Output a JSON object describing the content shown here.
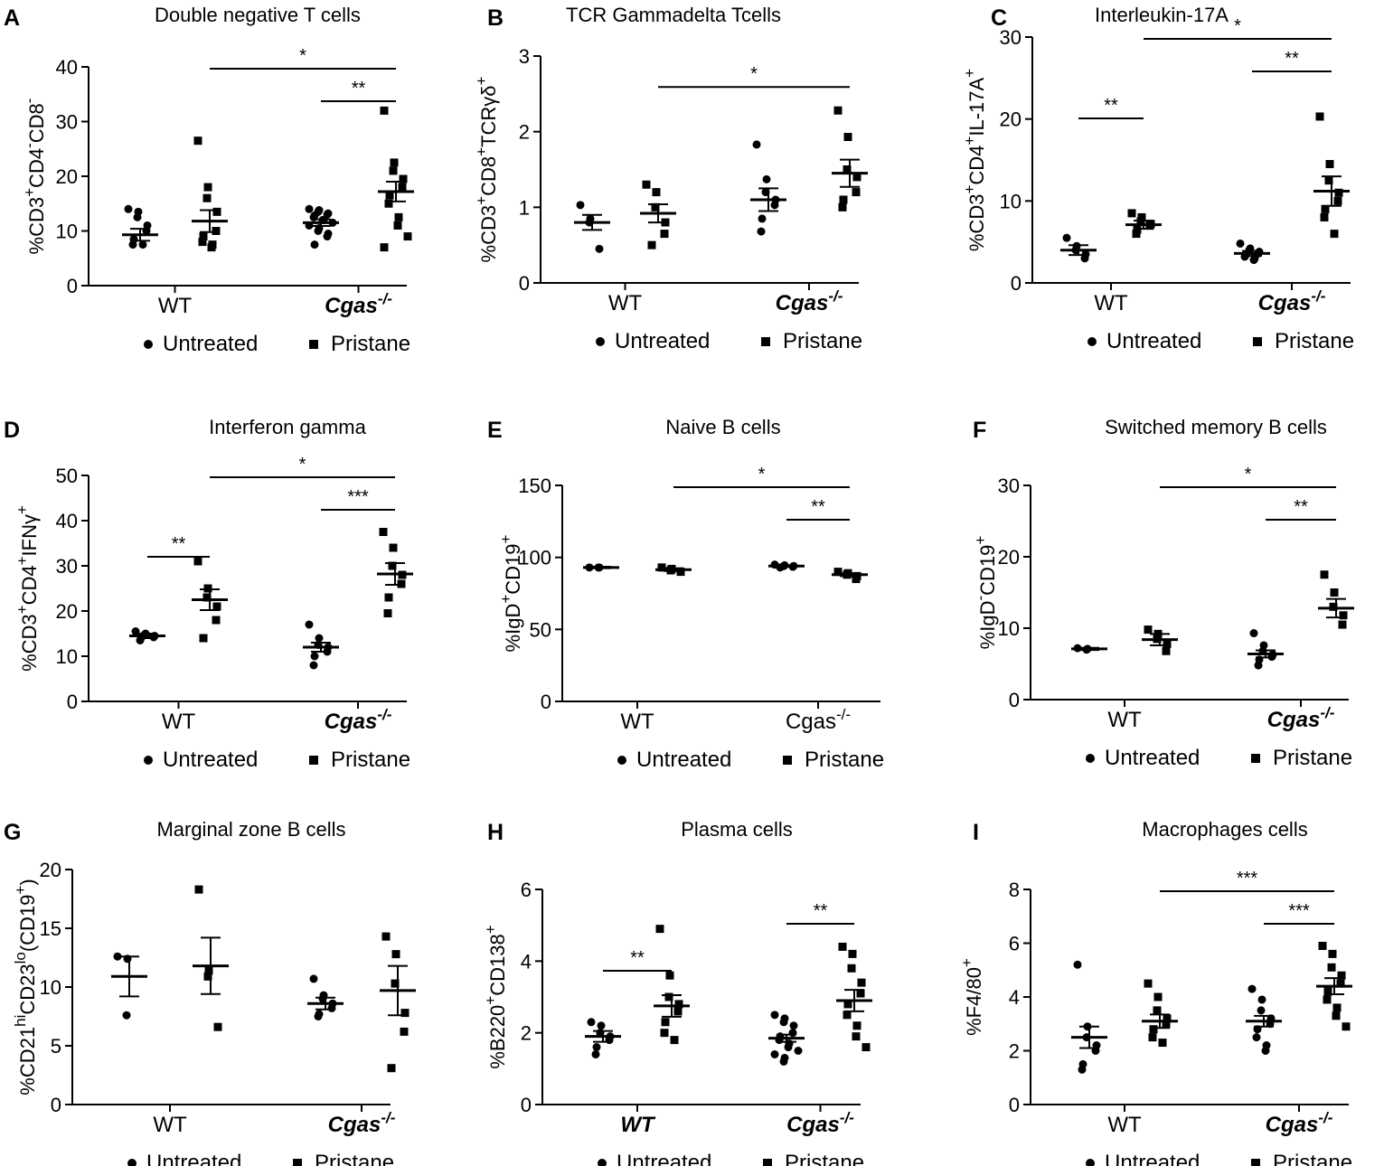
{
  "legend": {
    "untreated": "Untreated",
    "pristane": "Pristane"
  },
  "chart_data": [
    {
      "panel": "A",
      "type": "scatter",
      "title": "Double negative T cells",
      "ylabel": "%CD3+CD4-CD8-",
      "ylim": [
        0,
        40
      ],
      "yticks": [
        0,
        10,
        20,
        30,
        40
      ],
      "groups": [
        {
          "label": "WT",
          "italic": false
        },
        {
          "label": "Cgas-/-",
          "italic": true
        }
      ],
      "series": [
        {
          "group": 0,
          "treatment": "Untreated",
          "mean": 9.3,
          "sem": 1.1,
          "values": [
            14,
            13.5,
            12.5,
            11,
            10,
            8.5,
            7.5,
            7.5
          ]
        },
        {
          "group": 0,
          "treatment": "Pristane",
          "mean": 11.8,
          "sem": 2,
          "values": [
            26.5,
            18,
            16,
            13.5,
            10,
            9,
            8,
            7.5,
            7
          ]
        },
        {
          "group": 1,
          "treatment": "Untreated",
          "mean": 11.5,
          "sem": 0.6,
          "values": [
            14,
            13.8,
            13.5,
            13.2,
            13,
            12.8,
            12.5,
            12,
            12,
            11.5,
            11,
            10.5,
            10,
            9.5,
            9,
            7.5
          ]
        },
        {
          "group": 1,
          "treatment": "Pristane",
          "mean": 17.2,
          "sem": 1.8,
          "values": [
            32,
            22.5,
            21,
            19.5,
            18,
            16.5,
            15,
            12.5,
            11,
            9,
            7
          ]
        }
      ],
      "significance": [
        {
          "from": "WT Pristane",
          "to": "Cgas-/- Pristane",
          "label": "*"
        },
        {
          "from": "Cgas-/- Untreated",
          "to": "Cgas-/- Pristane",
          "label": "**"
        }
      ]
    },
    {
      "panel": "B",
      "type": "scatter",
      "title": "TCR Gammadelta Tcells",
      "ylabel": "%CD3+CD8+TCRγδ+",
      "ylim": [
        0,
        3
      ],
      "yticks": [
        0,
        1,
        2,
        3
      ],
      "groups": [
        {
          "label": "WT",
          "italic": false
        },
        {
          "label": "Cgas-/-",
          "italic": true
        }
      ],
      "series": [
        {
          "group": 0,
          "treatment": "Untreated",
          "mean": 0.8,
          "sem": 0.1,
          "values": [
            1.03,
            0.85,
            0.8,
            0.45
          ]
        },
        {
          "group": 0,
          "treatment": "Pristane",
          "mean": 0.92,
          "sem": 0.12,
          "values": [
            1.3,
            1.2,
            1,
            0.8,
            0.65,
            0.5
          ]
        },
        {
          "group": 1,
          "treatment": "Untreated",
          "mean": 1.1,
          "sem": 0.15,
          "values": [
            1.83,
            1.37,
            1.2,
            1.1,
            1.03,
            0.85,
            0.68
          ]
        },
        {
          "group": 1,
          "treatment": "Pristane",
          "mean": 1.45,
          "sem": 0.18,
          "values": [
            2.28,
            1.93,
            1.5,
            1.4,
            1.2,
            1.1,
            1
          ]
        }
      ],
      "significance": [
        {
          "from": "WT Pristane",
          "to": "Cgas-/- Pristane",
          "label": "*"
        }
      ]
    },
    {
      "panel": "C",
      "type": "scatter",
      "title": "Interleukin-17A",
      "ylabel": "%CD3+CD4+IL-17A+",
      "ylim": [
        0,
        30
      ],
      "yticks": [
        0,
        10,
        20,
        30
      ],
      "groups": [
        {
          "label": "WT",
          "italic": false
        },
        {
          "label": "Cgas-/-",
          "italic": true
        }
      ],
      "series": [
        {
          "group": 0,
          "treatment": "Untreated",
          "mean": 4,
          "sem": 0.6,
          "values": [
            5.5,
            4.5,
            4,
            3.5,
            3
          ]
        },
        {
          "group": 0,
          "treatment": "Pristane",
          "mean": 7.1,
          "sem": 0.5,
          "values": [
            8.5,
            8,
            7.5,
            7.2,
            7,
            6.5,
            6
          ]
        },
        {
          "group": 1,
          "treatment": "Untreated",
          "mean": 3.6,
          "sem": 0.3,
          "values": [
            4.8,
            4.2,
            4,
            3.8,
            3.6,
            3.4,
            3.2,
            3,
            2.8
          ]
        },
        {
          "group": 1,
          "treatment": "Pristane",
          "mean": 11.2,
          "sem": 1.8,
          "values": [
            20.3,
            14.5,
            12.5,
            11,
            10,
            9,
            8,
            6
          ]
        }
      ],
      "significance": [
        {
          "from": "WT Untreated",
          "to": "WT Pristane",
          "label": "**"
        },
        {
          "from": "WT Pristane",
          "to": "Cgas-/- Pristane",
          "label": "*"
        },
        {
          "from": "Cgas-/- Untreated",
          "to": "Cgas-/- Pristane",
          "label": "**"
        }
      ]
    },
    {
      "panel": "D",
      "type": "scatter",
      "title": "Interferon gamma",
      "ylabel": "%CD3+CD4+IFNγ+",
      "ylim": [
        0,
        50
      ],
      "yticks": [
        0,
        10,
        20,
        30,
        40,
        50
      ],
      "groups": [
        {
          "label": "WT",
          "italic": false
        },
        {
          "label": "Cgas-/-",
          "italic": true
        }
      ],
      "series": [
        {
          "group": 0,
          "treatment": "Untreated",
          "mean": 14.5,
          "sem": 0.5,
          "values": [
            15.5,
            15,
            14.8,
            14.5,
            14.2,
            14,
            13.5
          ]
        },
        {
          "group": 0,
          "treatment": "Pristane",
          "mean": 22.5,
          "sem": 2.3,
          "values": [
            31,
            25,
            23,
            21,
            18,
            14
          ]
        },
        {
          "group": 1,
          "treatment": "Untreated",
          "mean": 12,
          "sem": 1,
          "values": [
            17,
            14,
            12.5,
            12,
            11,
            10,
            8
          ]
        },
        {
          "group": 1,
          "treatment": "Pristane",
          "mean": 28.2,
          "sem": 2.4,
          "values": [
            37.5,
            34,
            30,
            28,
            26,
            23,
            19.5
          ]
        }
      ],
      "significance": [
        {
          "from": "WT Untreated",
          "to": "WT Pristane",
          "label": "**"
        },
        {
          "from": "WT Pristane",
          "to": "Cgas-/- Pristane",
          "label": "*"
        },
        {
          "from": "Cgas-/- Untreated",
          "to": "Cgas-/- Pristane",
          "label": "***"
        }
      ]
    },
    {
      "panel": "E",
      "type": "scatter",
      "title": "Naive B cells",
      "ylabel": "%IgD+CD19+",
      "ylim": [
        0,
        150
      ],
      "yticks": [
        0,
        50,
        100,
        150
      ],
      "groups": [
        {
          "label": "WT",
          "italic": false
        },
        {
          "label": "Cgas-/-",
          "italic": false
        }
      ],
      "series": [
        {
          "group": 0,
          "treatment": "Untreated",
          "mean": 93,
          "sem": 0.5,
          "values": [
            93,
            93,
            93
          ]
        },
        {
          "group": 0,
          "treatment": "Pristane",
          "mean": 91.5,
          "sem": 1,
          "values": [
            93,
            92,
            91,
            90
          ]
        },
        {
          "group": 1,
          "treatment": "Untreated",
          "mean": 94,
          "sem": 0.5,
          "values": [
            95,
            94.5,
            94,
            94,
            93.5,
            93
          ]
        },
        {
          "group": 1,
          "treatment": "Pristane",
          "mean": 88,
          "sem": 1,
          "values": [
            90,
            89,
            88,
            87,
            85
          ]
        }
      ],
      "significance": [
        {
          "from": "WT Pristane",
          "to": "Cgas-/- Pristane",
          "label": "*"
        },
        {
          "from": "Cgas-/- Untreated",
          "to": "Cgas-/- Pristane",
          "label": "**"
        }
      ]
    },
    {
      "panel": "F",
      "type": "scatter",
      "title": "Switched memory B cells",
      "ylabel": "%IgD-CD19+",
      "ylim": [
        0,
        30
      ],
      "yticks": [
        0,
        10,
        20,
        30
      ],
      "groups": [
        {
          "label": "WT",
          "italic": false
        },
        {
          "label": "Cgas-/-",
          "italic": true
        }
      ],
      "series": [
        {
          "group": 0,
          "treatment": "Untreated",
          "mean": 7.1,
          "sem": 0.15,
          "values": [
            7.2,
            7.1,
            7
          ]
        },
        {
          "group": 0,
          "treatment": "Pristane",
          "mean": 8.4,
          "sem": 0.8,
          "values": [
            9.8,
            9.2,
            8.5,
            7.8,
            6.8
          ]
        },
        {
          "group": 1,
          "treatment": "Untreated",
          "mean": 6.4,
          "sem": 0.5,
          "values": [
            9.3,
            7.6,
            6.8,
            6.3,
            6,
            5.6,
            4.8
          ]
        },
        {
          "group": 1,
          "treatment": "Pristane",
          "mean": 12.8,
          "sem": 1.3,
          "values": [
            17.5,
            15,
            13,
            11.8,
            10.5
          ]
        }
      ],
      "significance": [
        {
          "from": "WT Pristane",
          "to": "Cgas-/- Pristane",
          "label": "*"
        },
        {
          "from": "Cgas-/- Untreated",
          "to": "Cgas-/- Pristane",
          "label": "**"
        }
      ]
    },
    {
      "panel": "G",
      "type": "scatter",
      "title": "Marginal zone B cells",
      "ylabel": "%CD21hiCD23lo(CD19+)",
      "ylim": [
        0,
        20
      ],
      "yticks": [
        0,
        5,
        10,
        15,
        20
      ],
      "groups": [
        {
          "label": "WT",
          "italic": false
        },
        {
          "label": "Cgas-/-",
          "italic": true
        }
      ],
      "series": [
        {
          "group": 0,
          "treatment": "Untreated",
          "mean": 10.9,
          "sem": 1.7,
          "values": [
            12.6,
            12.4,
            7.6
          ]
        },
        {
          "group": 0,
          "treatment": "Pristane",
          "mean": 11.8,
          "sem": 2.4,
          "values": [
            18.3,
            11.4,
            10.9,
            6.6
          ]
        },
        {
          "group": 1,
          "treatment": "Untreated",
          "mean": 8.6,
          "sem": 0.5,
          "values": [
            10.7,
            9.3,
            9,
            8.6,
            8.2,
            7.7,
            7.5
          ]
        },
        {
          "group": 1,
          "treatment": "Pristane",
          "mean": 9.7,
          "sem": 2.1,
          "values": [
            14.3,
            12.8,
            10.3,
            7.8,
            6.2,
            3.1
          ]
        }
      ],
      "significance": []
    },
    {
      "panel": "H",
      "type": "scatter",
      "title": "Plasma cells",
      "ylabel": "%B220+CD138+",
      "ylim": [
        0,
        6
      ],
      "yticks": [
        0,
        2,
        4,
        6
      ],
      "groups": [
        {
          "label": "WT",
          "italic": true
        },
        {
          "label": "Cgas-/-",
          "italic": true
        }
      ],
      "series": [
        {
          "group": 0,
          "treatment": "Untreated",
          "mean": 1.9,
          "sem": 0.15,
          "values": [
            2.3,
            2.2,
            2,
            1.9,
            1.8,
            1.6,
            1.4
          ]
        },
        {
          "group": 0,
          "treatment": "Pristane",
          "mean": 2.75,
          "sem": 0.3,
          "values": [
            4.9,
            3.6,
            3,
            2.8,
            2.6,
            2.3,
            2,
            1.8
          ]
        },
        {
          "group": 1,
          "treatment": "Untreated",
          "mean": 1.85,
          "sem": 0.1,
          "values": [
            2.5,
            2.4,
            2.3,
            2.2,
            2,
            1.9,
            1.8,
            1.7,
            1.6,
            1.5,
            1.4,
            1.3,
            1.2
          ]
        },
        {
          "group": 1,
          "treatment": "Pristane",
          "mean": 2.9,
          "sem": 0.3,
          "values": [
            4.4,
            4.2,
            3.8,
            3.4,
            3.1,
            2.8,
            2.5,
            2.2,
            1.9,
            1.6
          ]
        }
      ],
      "significance": [
        {
          "from": "WT Untreated",
          "to": "WT Pristane",
          "label": "**"
        },
        {
          "from": "Cgas-/- Untreated",
          "to": "Cgas-/- Pristane",
          "label": "**"
        }
      ]
    },
    {
      "panel": "I",
      "type": "scatter",
      "title": "Macrophages cells",
      "ylabel": "%F4/80+",
      "ylim": [
        0,
        8
      ],
      "yticks": [
        0,
        2,
        4,
        6,
        8
      ],
      "groups": [
        {
          "label": "WT",
          "italic": false
        },
        {
          "label": "Cgas-/-",
          "italic": true
        }
      ],
      "series": [
        {
          "group": 0,
          "treatment": "Untreated",
          "mean": 2.5,
          "sem": 0.4,
          "values": [
            5.2,
            2.9,
            2.5,
            2.2,
            2,
            1.5,
            1.3
          ]
        },
        {
          "group": 0,
          "treatment": "Pristane",
          "mean": 3.1,
          "sem": 0.25,
          "values": [
            4.5,
            4,
            3.5,
            3.2,
            3,
            2.8,
            2.5,
            2.3
          ]
        },
        {
          "group": 1,
          "treatment": "Untreated",
          "mean": 3.1,
          "sem": 0.2,
          "values": [
            4.3,
            3.9,
            3.5,
            3.2,
            3,
            2.8,
            2.5,
            2.2,
            2
          ]
        },
        {
          "group": 1,
          "treatment": "Pristane",
          "mean": 4.4,
          "sem": 0.3,
          "values": [
            5.9,
            5.6,
            5.1,
            4.8,
            4.5,
            4.2,
            3.9,
            3.6,
            3.3,
            2.9
          ]
        }
      ],
      "significance": [
        {
          "from": "WT Pristane",
          "to": "Cgas-/- Pristane",
          "label": "***"
        },
        {
          "from": "Cgas-/- Untreated",
          "to": "Cgas-/- Pristane",
          "label": "***"
        }
      ]
    }
  ]
}
